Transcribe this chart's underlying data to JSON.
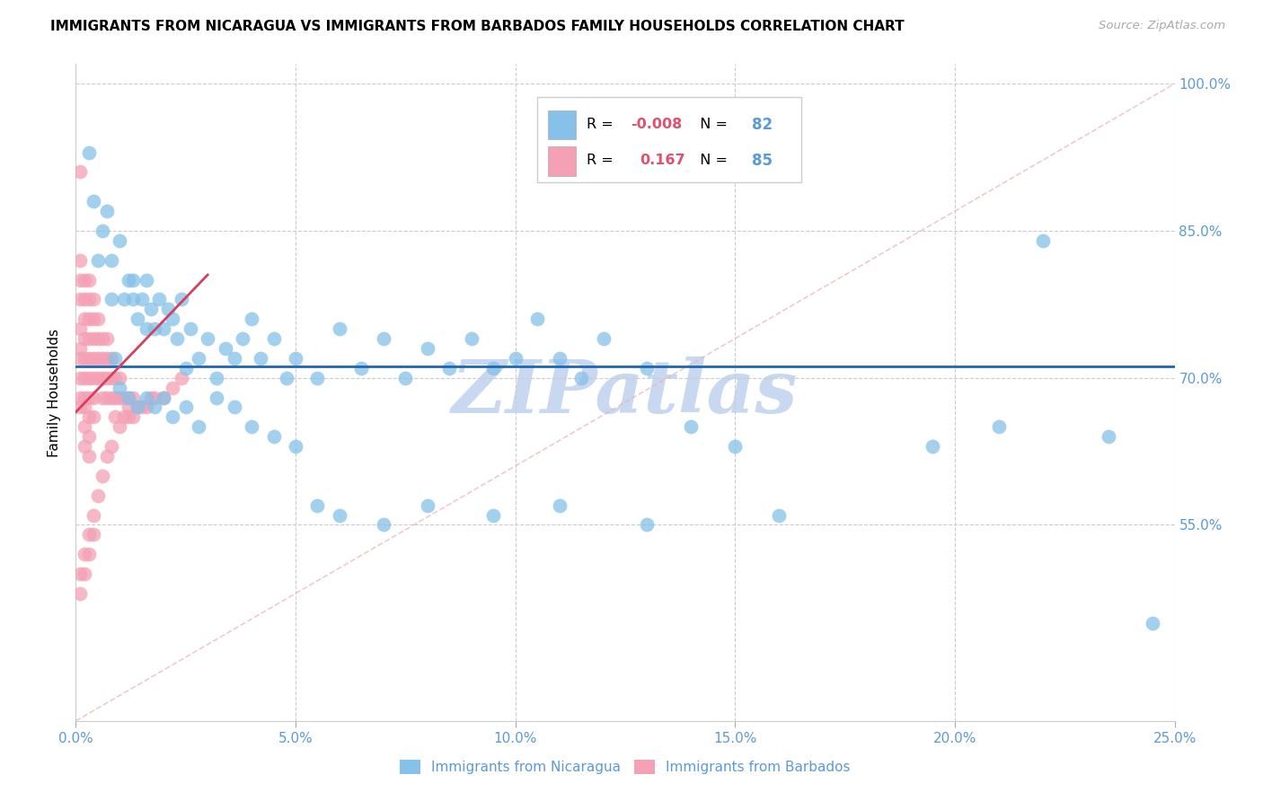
{
  "title": "IMMIGRANTS FROM NICARAGUA VS IMMIGRANTS FROM BARBADOS FAMILY HOUSEHOLDS CORRELATION CHART",
  "source": "Source: ZipAtlas.com",
  "xlabel_blue": "Immigrants from Nicaragua",
  "xlabel_pink": "Immigrants from Barbados",
  "ylabel": "Family Households",
  "r_blue": -0.008,
  "n_blue": 82,
  "r_pink": 0.167,
  "n_pink": 85,
  "xlim": [
    0.0,
    0.25
  ],
  "ylim": [
    0.35,
    1.02
  ],
  "xticks": [
    0.0,
    0.05,
    0.1,
    0.15,
    0.2,
    0.25
  ],
  "yticks": [
    0.55,
    0.7,
    0.85,
    1.0
  ],
  "color_blue": "#85C1E8",
  "color_pink": "#F4A0B5",
  "color_blue_line": "#2166AC",
  "color_pink_line": "#D44060",
  "color_diag": "#E8B4B8",
  "color_watermark": "#C8D8F0",
  "watermark_text": "ZIPatlas",
  "blue_line_y": 0.712,
  "pink_line_x0": 0.0,
  "pink_line_y0": 0.665,
  "pink_line_x1": 0.03,
  "pink_line_y1": 0.805,
  "blue_scatter_x": [
    0.005,
    0.007,
    0.008,
    0.01,
    0.011,
    0.012,
    0.013,
    0.013,
    0.014,
    0.015,
    0.016,
    0.016,
    0.017,
    0.018,
    0.019,
    0.02,
    0.021,
    0.022,
    0.023,
    0.024,
    0.025,
    0.026,
    0.028,
    0.03,
    0.032,
    0.034,
    0.036,
    0.038,
    0.04,
    0.042,
    0.045,
    0.048,
    0.05,
    0.055,
    0.06,
    0.065,
    0.07,
    0.075,
    0.08,
    0.085,
    0.09,
    0.095,
    0.1,
    0.105,
    0.11,
    0.115,
    0.12,
    0.13,
    0.14,
    0.15,
    0.003,
    0.004,
    0.006,
    0.008,
    0.009,
    0.01,
    0.012,
    0.014,
    0.016,
    0.018,
    0.02,
    0.022,
    0.025,
    0.028,
    0.032,
    0.036,
    0.04,
    0.045,
    0.05,
    0.055,
    0.06,
    0.07,
    0.08,
    0.095,
    0.11,
    0.13,
    0.16,
    0.195,
    0.21,
    0.22,
    0.235,
    0.245
  ],
  "blue_scatter_y": [
    0.82,
    0.87,
    0.82,
    0.84,
    0.78,
    0.8,
    0.78,
    0.8,
    0.76,
    0.78,
    0.8,
    0.75,
    0.77,
    0.75,
    0.78,
    0.75,
    0.77,
    0.76,
    0.74,
    0.78,
    0.71,
    0.75,
    0.72,
    0.74,
    0.7,
    0.73,
    0.72,
    0.74,
    0.76,
    0.72,
    0.74,
    0.7,
    0.72,
    0.7,
    0.75,
    0.71,
    0.74,
    0.7,
    0.73,
    0.71,
    0.74,
    0.71,
    0.72,
    0.76,
    0.72,
    0.7,
    0.74,
    0.71,
    0.65,
    0.63,
    0.93,
    0.88,
    0.85,
    0.78,
    0.72,
    0.69,
    0.68,
    0.67,
    0.68,
    0.67,
    0.68,
    0.66,
    0.67,
    0.65,
    0.68,
    0.67,
    0.65,
    0.64,
    0.63,
    0.57,
    0.56,
    0.55,
    0.57,
    0.56,
    0.57,
    0.55,
    0.56,
    0.63,
    0.65,
    0.84,
    0.64,
    0.45
  ],
  "pink_scatter_x": [
    0.001,
    0.001,
    0.001,
    0.001,
    0.001,
    0.001,
    0.001,
    0.001,
    0.001,
    0.001,
    0.002,
    0.002,
    0.002,
    0.002,
    0.002,
    0.002,
    0.002,
    0.002,
    0.002,
    0.002,
    0.003,
    0.003,
    0.003,
    0.003,
    0.003,
    0.003,
    0.003,
    0.003,
    0.003,
    0.003,
    0.004,
    0.004,
    0.004,
    0.004,
    0.004,
    0.004,
    0.004,
    0.005,
    0.005,
    0.005,
    0.005,
    0.006,
    0.006,
    0.006,
    0.006,
    0.007,
    0.007,
    0.007,
    0.007,
    0.008,
    0.008,
    0.008,
    0.009,
    0.009,
    0.009,
    0.01,
    0.01,
    0.011,
    0.011,
    0.012,
    0.012,
    0.013,
    0.013,
    0.014,
    0.015,
    0.016,
    0.017,
    0.018,
    0.02,
    0.022,
    0.024,
    0.001,
    0.001,
    0.002,
    0.002,
    0.003,
    0.003,
    0.004,
    0.004,
    0.005,
    0.006,
    0.007,
    0.008,
    0.01,
    0.012
  ],
  "pink_scatter_y": [
    0.91,
    0.82,
    0.8,
    0.78,
    0.75,
    0.73,
    0.72,
    0.7,
    0.68,
    0.67,
    0.8,
    0.78,
    0.76,
    0.74,
    0.72,
    0.7,
    0.68,
    0.67,
    0.65,
    0.63,
    0.8,
    0.78,
    0.76,
    0.74,
    0.72,
    0.7,
    0.68,
    0.66,
    0.64,
    0.62,
    0.78,
    0.76,
    0.74,
    0.72,
    0.7,
    0.68,
    0.66,
    0.76,
    0.74,
    0.72,
    0.7,
    0.74,
    0.72,
    0.7,
    0.68,
    0.74,
    0.72,
    0.7,
    0.68,
    0.72,
    0.7,
    0.68,
    0.7,
    0.68,
    0.66,
    0.7,
    0.68,
    0.68,
    0.66,
    0.68,
    0.66,
    0.68,
    0.66,
    0.67,
    0.67,
    0.67,
    0.68,
    0.68,
    0.68,
    0.69,
    0.7,
    0.5,
    0.48,
    0.52,
    0.5,
    0.54,
    0.52,
    0.56,
    0.54,
    0.58,
    0.6,
    0.62,
    0.63,
    0.65,
    0.67
  ]
}
